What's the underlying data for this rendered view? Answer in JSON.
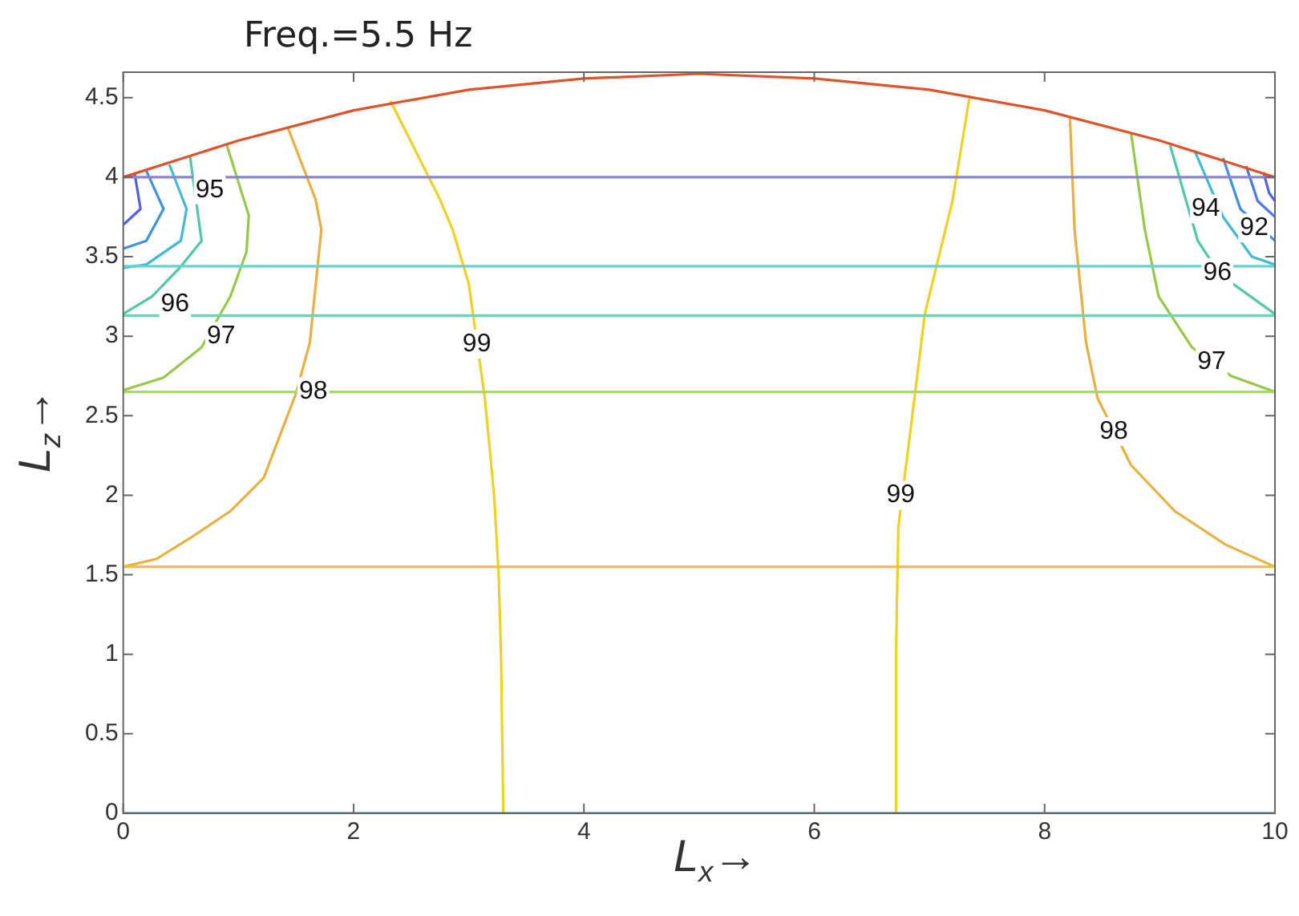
{
  "chart_data": {
    "type": "line",
    "title": "Freq.=5.5 Hz",
    "xlabel": "L$_{x}$→",
    "ylabel": "L$_{z}$→",
    "xlim": [
      0,
      10
    ],
    "ylim": [
      0,
      4.66
    ],
    "xticks": [
      0,
      2,
      4,
      6,
      8,
      10
    ],
    "yticks": [
      0,
      0.5,
      1,
      1.5,
      2,
      2.5,
      3,
      3.5,
      4,
      4.5
    ],
    "grid": false,
    "legend": false,
    "marker": "none",
    "line_style": "solid",
    "series": [
      {
        "color": "#e0522a",
        "x": [
          0,
          1,
          2,
          3,
          4,
          5,
          6,
          7,
          8,
          9,
          10
        ],
        "values": [
          4.0,
          4.23,
          4.42,
          4.55,
          4.62,
          4.65,
          4.62,
          4.55,
          4.42,
          4.23,
          4.0
        ]
      },
      {
        "color": "#8a84d6",
        "x": [
          0,
          10
        ],
        "values": [
          4.0,
          4.0
        ]
      },
      {
        "color": "#5fd6d6",
        "x": [
          0,
          10
        ],
        "values": [
          3.44,
          3.44
        ]
      },
      {
        "color": "#6dd6b0",
        "x": [
          0,
          10
        ],
        "values": [
          3.13,
          3.13
        ]
      },
      {
        "color": "#a8d86a",
        "x": [
          0,
          10
        ],
        "values": [
          2.65,
          2.65
        ]
      },
      {
        "color": "#f5c040",
        "x": [
          0,
          10
        ],
        "values": [
          1.55,
          1.55
        ]
      },
      {
        "color": "#1f78c8",
        "x": [
          0,
          10
        ],
        "values": [
          0,
          0
        ]
      },
      {
        "color": "#f0d020",
        "x": [
          2.32,
          2.75,
          2.86,
          3.0,
          3.14,
          3.22,
          3.26,
          3.28,
          3.3
        ],
        "values": [
          4.48,
          3.86,
          3.67,
          3.33,
          2.61,
          2.0,
          1.5,
          1.0,
          0
        ]
      },
      {
        "color": "#f0d020",
        "x": [
          7.35,
          7.2,
          6.96,
          6.81,
          6.73,
          6.71,
          6.71
        ],
        "values": [
          4.51,
          3.85,
          3.14,
          2.26,
          1.8,
          1.0,
          0
        ]
      },
      {
        "color": "#e8b040",
        "x": [
          1.43,
          1.67,
          1.72,
          1.62,
          1.5,
          1.22,
          0.93,
          0.58,
          0.29,
          0
        ],
        "values": [
          4.31,
          3.86,
          3.67,
          2.96,
          2.64,
          2.11,
          1.9,
          1.73,
          1.6,
          1.55
        ]
      },
      {
        "color": "#e8b040",
        "x": [
          8.22,
          8.26,
          8.36,
          8.46,
          8.75,
          9.13,
          9.57,
          10
        ],
        "values": [
          4.38,
          3.67,
          2.96,
          2.61,
          2.19,
          1.9,
          1.69,
          1.55
        ]
      },
      {
        "color": "#98c848",
        "x": [
          0.9,
          1.09,
          1.07,
          0.93,
          0.68,
          0.35,
          0
        ],
        "values": [
          4.2,
          3.76,
          3.53,
          3.25,
          2.93,
          2.74,
          2.66
        ]
      },
      {
        "color": "#98c848",
        "x": [
          8.75,
          8.87,
          8.99,
          9.28,
          9.62,
          10
        ],
        "values": [
          4.28,
          3.67,
          3.25,
          2.93,
          2.75,
          2.65
        ]
      },
      {
        "color": "#50c8a8",
        "x": [
          0.58,
          0.68,
          0.49,
          0.25,
          0
        ],
        "values": [
          4.13,
          3.6,
          3.43,
          3.25,
          3.14
        ]
      },
      {
        "color": "#50c8a8",
        "x": [
          9.09,
          9.33,
          9.52,
          10
        ],
        "values": [
          4.2,
          3.6,
          3.39,
          3.14
        ]
      },
      {
        "color": "#40b8d8",
        "x": [
          0.4,
          0.55,
          0.5,
          0.2,
          0
        ],
        "values": [
          4.08,
          3.8,
          3.6,
          3.45,
          3.43
        ]
      },
      {
        "color": "#4090e0",
        "x": [
          0.2,
          0.35,
          0.2,
          0
        ],
        "values": [
          4.04,
          3.8,
          3.6,
          3.55
        ]
      },
      {
        "color": "#5060e8",
        "x": [
          0.1,
          0.15,
          0
        ],
        "values": [
          4.02,
          3.8,
          3.7
        ]
      },
      {
        "color": "#40b8d8",
        "x": [
          9.3,
          9.55,
          9.8,
          10
        ],
        "values": [
          4.17,
          3.75,
          3.5,
          3.45
        ]
      },
      {
        "color": "#4090e0",
        "x": [
          9.55,
          9.7,
          10
        ],
        "values": [
          4.12,
          3.8,
          3.6
        ]
      },
      {
        "color": "#4a78e4",
        "x": [
          9.75,
          9.85,
          10
        ],
        "values": [
          4.07,
          3.85,
          3.75
        ]
      },
      {
        "color": "#5060e8",
        "x": [
          9.9,
          9.95,
          10
        ],
        "values": [
          4.03,
          3.9,
          3.85
        ]
      }
    ],
    "annotations": [
      {
        "text": "95",
        "x": 0.75,
        "y": 3.92
      },
      {
        "text": "96",
        "x": 0.45,
        "y": 3.2
      },
      {
        "text": "97",
        "x": 0.85,
        "y": 3.0
      },
      {
        "text": "98",
        "x": 1.65,
        "y": 2.65
      },
      {
        "text": "99",
        "x": 3.07,
        "y": 2.95
      },
      {
        "text": "99",
        "x": 6.75,
        "y": 2.0
      },
      {
        "text": "98",
        "x": 8.6,
        "y": 2.4
      },
      {
        "text": "97",
        "x": 9.45,
        "y": 2.84
      },
      {
        "text": "96",
        "x": 9.5,
        "y": 3.4
      },
      {
        "text": "94",
        "x": 9.4,
        "y": 3.8
      },
      {
        "text": "92",
        "x": 9.82,
        "y": 3.68
      }
    ]
  }
}
